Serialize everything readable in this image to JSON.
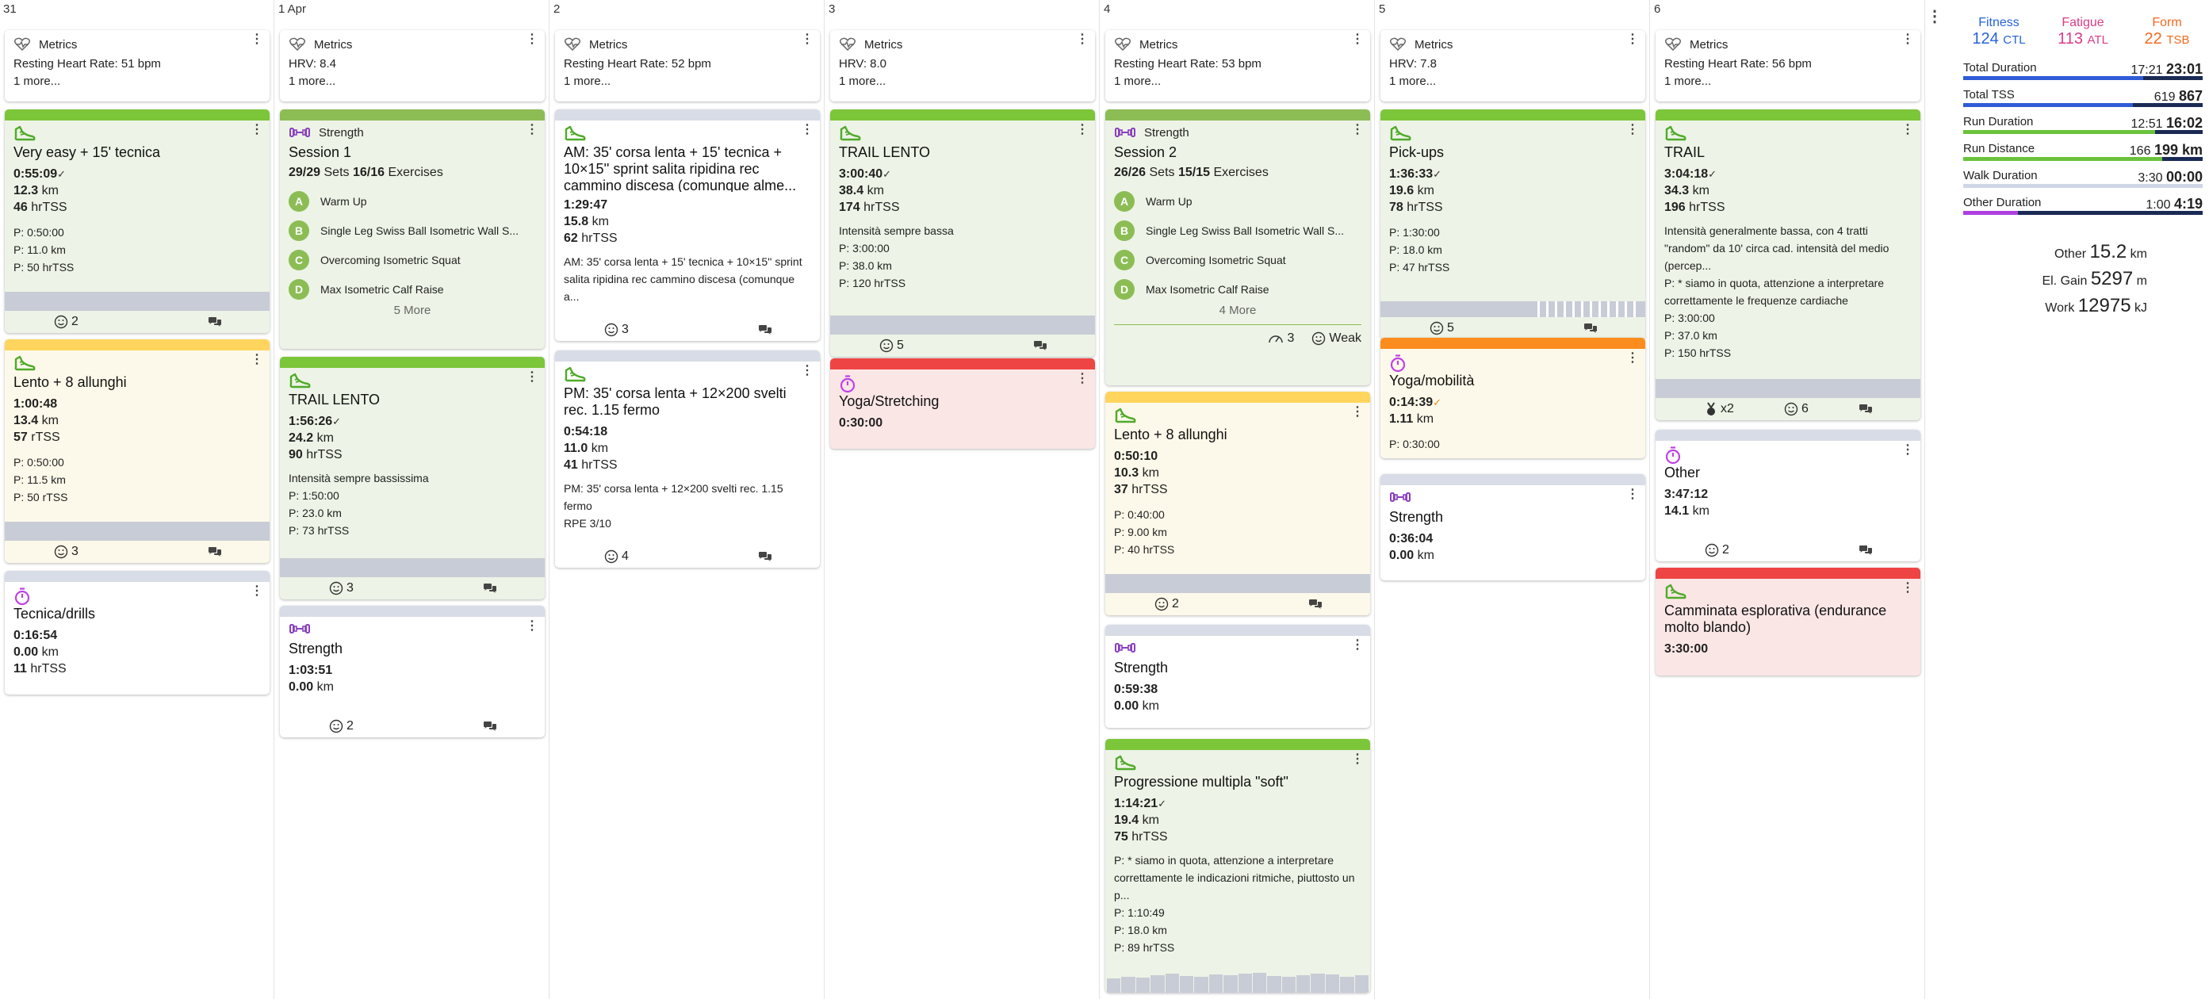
{
  "days": [
    {
      "head": "31",
      "metrics": {
        "line": "Resting Heart Rate: 51 bpm",
        "more": "1 more..."
      },
      "cards": [
        {
          "title": "Very easy + 15' tecnica",
          "dur": "0:55:09",
          "check": "✓",
          "km": "12.3",
          "kmunit": "km",
          "load": "46",
          "loadunit": "hrTSS",
          "plan": [
            "P: 0:50:00",
            "P: 11.0 km",
            "P: 50 hrTSS"
          ],
          "smile": "2"
        },
        {
          "title": "Lento + 8 allunghi",
          "dur": "1:00:48",
          "km": "13.4",
          "kmunit": "km",
          "load": "57",
          "loadunit": "rTSS",
          "plan": [
            "P: 0:50:00",
            "P: 11.5 km",
            "P: 50 rTSS"
          ],
          "smile": "3"
        },
        {
          "title": "Tecnica/drills",
          "dur": "0:16:54",
          "km": "0.00",
          "kmunit": "km",
          "load": "11",
          "loadunit": "hrTSS"
        }
      ]
    },
    {
      "head": "1 Apr",
      "metrics": {
        "line": "HRV: 8.4",
        "more": "1 more..."
      },
      "cards": [
        {
          "type": "Strength",
          "title": "Session 1",
          "sets": "29/29",
          "setslbl": "Sets",
          "exs": "16/16",
          "exlbl": "Exercises",
          "ex": [
            "Warm Up",
            "Single Leg Swiss Ball Isometric Wall S...",
            "Overcoming Isometric Squat",
            "Max Isometric Calf Raise"
          ],
          "exletters": [
            "A",
            "B",
            "C",
            "D"
          ],
          "more": "5 More"
        },
        {
          "title": "TRAIL LENTO",
          "dur": "1:56:26",
          "check": "✓",
          "km": "24.2",
          "kmunit": "km",
          "load": "90",
          "loadunit": "hrTSS",
          "note": "Intensità sempre bassissima",
          "plan": [
            "P: 1:50:00",
            "P: 23.0 km",
            "P: 73 hrTSS"
          ],
          "smile": "3"
        },
        {
          "title": "Strength",
          "dur": "1:03:51",
          "km": "0.00",
          "kmunit": "km",
          "smile": "2"
        }
      ]
    },
    {
      "head": "2",
      "metrics": {
        "line": "Resting Heart Rate: 52 bpm",
        "more": "1 more..."
      },
      "cards": [
        {
          "title": "AM: 35' corsa lenta + 15' tecnica + 10×15'' sprint salita ripidina rec cammino discesa (comunque alme...",
          "dur": "1:29:47",
          "km": "15.8",
          "kmunit": "km",
          "load": "62",
          "loadunit": "hrTSS",
          "note": "AM: 35' corsa lenta + 15' tecnica + 10×15'' sprint salita ripidina rec cammino discesa (comunque a...",
          "smile": "3"
        },
        {
          "title": "PM: 35' corsa lenta + 12×200 svelti rec. 1.15 fermo",
          "dur": "0:54:18",
          "km": "11.0",
          "kmunit": "km",
          "load": "41",
          "loadunit": "hrTSS",
          "note": "PM: 35' corsa lenta + 12×200 svelti rec. 1.15 fermo",
          "rpe": "RPE 3/10",
          "smile": "4"
        }
      ]
    },
    {
      "head": "3",
      "metrics": {
        "line": "HRV: 8.0",
        "more": "1 more..."
      },
      "cards": [
        {
          "title": "TRAIL LENTO",
          "dur": "3:00:40",
          "check": "✓",
          "km": "38.4",
          "kmunit": "km",
          "load": "174",
          "loadunit": "hrTSS",
          "note": "Intensità sempre bassa",
          "plan": [
            "P: 3:00:00",
            "P: 38.0 km",
            "P: 120 hrTSS"
          ],
          "smile": "5"
        },
        {
          "title": "Yoga/Stretching",
          "dur": "0:30:00"
        }
      ]
    },
    {
      "head": "4",
      "metrics": {
        "line": "Resting Heart Rate: 53 bpm",
        "more": "1 more..."
      },
      "cards": [
        {
          "type": "Strength",
          "title": "Session 2",
          "sets": "26/26",
          "setslbl": "Sets",
          "exs": "15/15",
          "exlbl": "Exercises",
          "ex": [
            "Warm Up",
            "Single Leg Swiss Ball Isometric Wall S...",
            "Overcoming Isometric Squat",
            "Max Isometric Calf Raise"
          ],
          "exletters": [
            "A",
            "B",
            "C",
            "D"
          ],
          "more": "4 More",
          "rpe": "3",
          "feel": "Weak"
        },
        {
          "title": "Lento + 8 allunghi",
          "dur": "0:50:10",
          "km": "10.3",
          "kmunit": "km",
          "load": "37",
          "loadunit": "hrTSS",
          "plan": [
            "P: 0:40:00",
            "P: 9.00 km",
            "P: 40 hrTSS"
          ],
          "smile": "2"
        },
        {
          "title": "Strength",
          "dur": "0:59:38",
          "km": "0.00",
          "kmunit": "km"
        },
        {
          "title": "Progressione multipla \"soft\"",
          "dur": "1:14:21",
          "check": "✓",
          "km": "19.4",
          "kmunit": "km",
          "load": "75",
          "loadunit": "hrTSS",
          "note": "P: * siamo in quota, attenzione a interpretare correttamente le indicazioni ritmiche, piuttosto un p...",
          "plan": [
            "P: 1:10:49",
            "P: 18.0 km",
            "P: 89 hrTSS"
          ]
        }
      ]
    },
    {
      "head": "5",
      "metrics": {
        "line": "HRV: 7.8",
        "more": "1 more..."
      },
      "cards": [
        {
          "title": "Pick-ups",
          "dur": "1:36:33",
          "check": "✓",
          "km": "19.6",
          "kmunit": "km",
          "load": "78",
          "loadunit": "hrTSS",
          "plan": [
            "P: 1:30:00",
            "P: 18.0 km",
            "P: 47 hrTSS"
          ],
          "smile": "5"
        },
        {
          "title": "Yoga/mobilità",
          "dur": "0:14:39",
          "check": "✓",
          "km": "1.11",
          "kmunit": "km",
          "plan": [
            "P: 0:30:00"
          ]
        },
        {
          "title": "Strength",
          "dur": "0:36:04",
          "km": "0.00",
          "kmunit": "km"
        }
      ]
    },
    {
      "head": "6",
      "metrics": {
        "line": "Resting Heart Rate: 56 bpm",
        "more": "1 more..."
      },
      "cards": [
        {
          "title": "TRAIL",
          "dur": "3:04:18",
          "check": "✓",
          "km": "34.3",
          "kmunit": "km",
          "load": "196",
          "loadunit": "hrTSS",
          "note": "Intensità generalmente bassa, con 4 tratti \"random\" da 10' circa cad. intensità del medio (percep...",
          "note2": "P: * siamo in quota, attenzione a interpretare correttamente le frequenze cardiache",
          "plan": [
            "P: 3:00:00",
            "P: 37.0 km",
            "P: 150 hrTSS"
          ],
          "medal": "x2",
          "smile": "6"
        },
        {
          "title": "Other",
          "dur": "3:47:12",
          "km": "14.1",
          "kmunit": "km",
          "smile": "2"
        },
        {
          "title": "Camminata esplorativa (endurance molto blando)",
          "dur": "3:30:00"
        }
      ]
    }
  ],
  "metrics_label": "Metrics",
  "sidebar": {
    "fitness": {
      "label": "Fitness",
      "value": "124",
      "unit": "CTL"
    },
    "fatigue": {
      "label": "Fatigue",
      "value": "113",
      "unit": "ATL"
    },
    "form": {
      "label": "Form",
      "value": "22",
      "unit": "TSB"
    },
    "totals": [
      {
        "label": "Total Duration",
        "a": "17:21",
        "b": "23:01",
        "fill": 0.75,
        "color": "#2f5bd6"
      },
      {
        "label": "Total TSS",
        "a": "619",
        "b": "867",
        "fill": 0.71,
        "color": "#2f5bd6"
      },
      {
        "label": "Run Duration",
        "a": "12:51",
        "b": "16:02",
        "fill": 0.8,
        "color": "#6bc23c"
      },
      {
        "label": "Run Distance",
        "a": "166",
        "b": "199 km",
        "fill": 0.83,
        "color": "#6bc23c"
      },
      {
        "label": "Walk Duration",
        "a": "3:30",
        "b": "00:00",
        "fill": 1.0,
        "color": "#cfd6e6"
      },
      {
        "label": "Other Duration",
        "a": "1:00",
        "b": "4:19",
        "fill": 0.23,
        "color": "#b13ee0"
      }
    ],
    "extra": [
      {
        "label": "Other",
        "value": "15.2",
        "unit": "km"
      },
      {
        "label": "El. Gain",
        "value": "5297",
        "unit": "m"
      },
      {
        "label": "Work",
        "value": "12975",
        "unit": "kJ"
      }
    ]
  },
  "colors": {
    "accent_green": "#7cc639",
    "strength_purple": "#8a3fbf",
    "timer_purple": "#c041e6",
    "fitness_blue": "#2663d8",
    "fatigue_pink": "#d83d86",
    "form_orange": "#f06a1f"
  },
  "icons": [
    "shoe-icon",
    "dumbbell-icon",
    "stopwatch-icon",
    "heart-pulse-icon",
    "smile-icon",
    "comment-icon",
    "kebab-menu-icon",
    "medal-icon",
    "gauge-icon"
  ]
}
